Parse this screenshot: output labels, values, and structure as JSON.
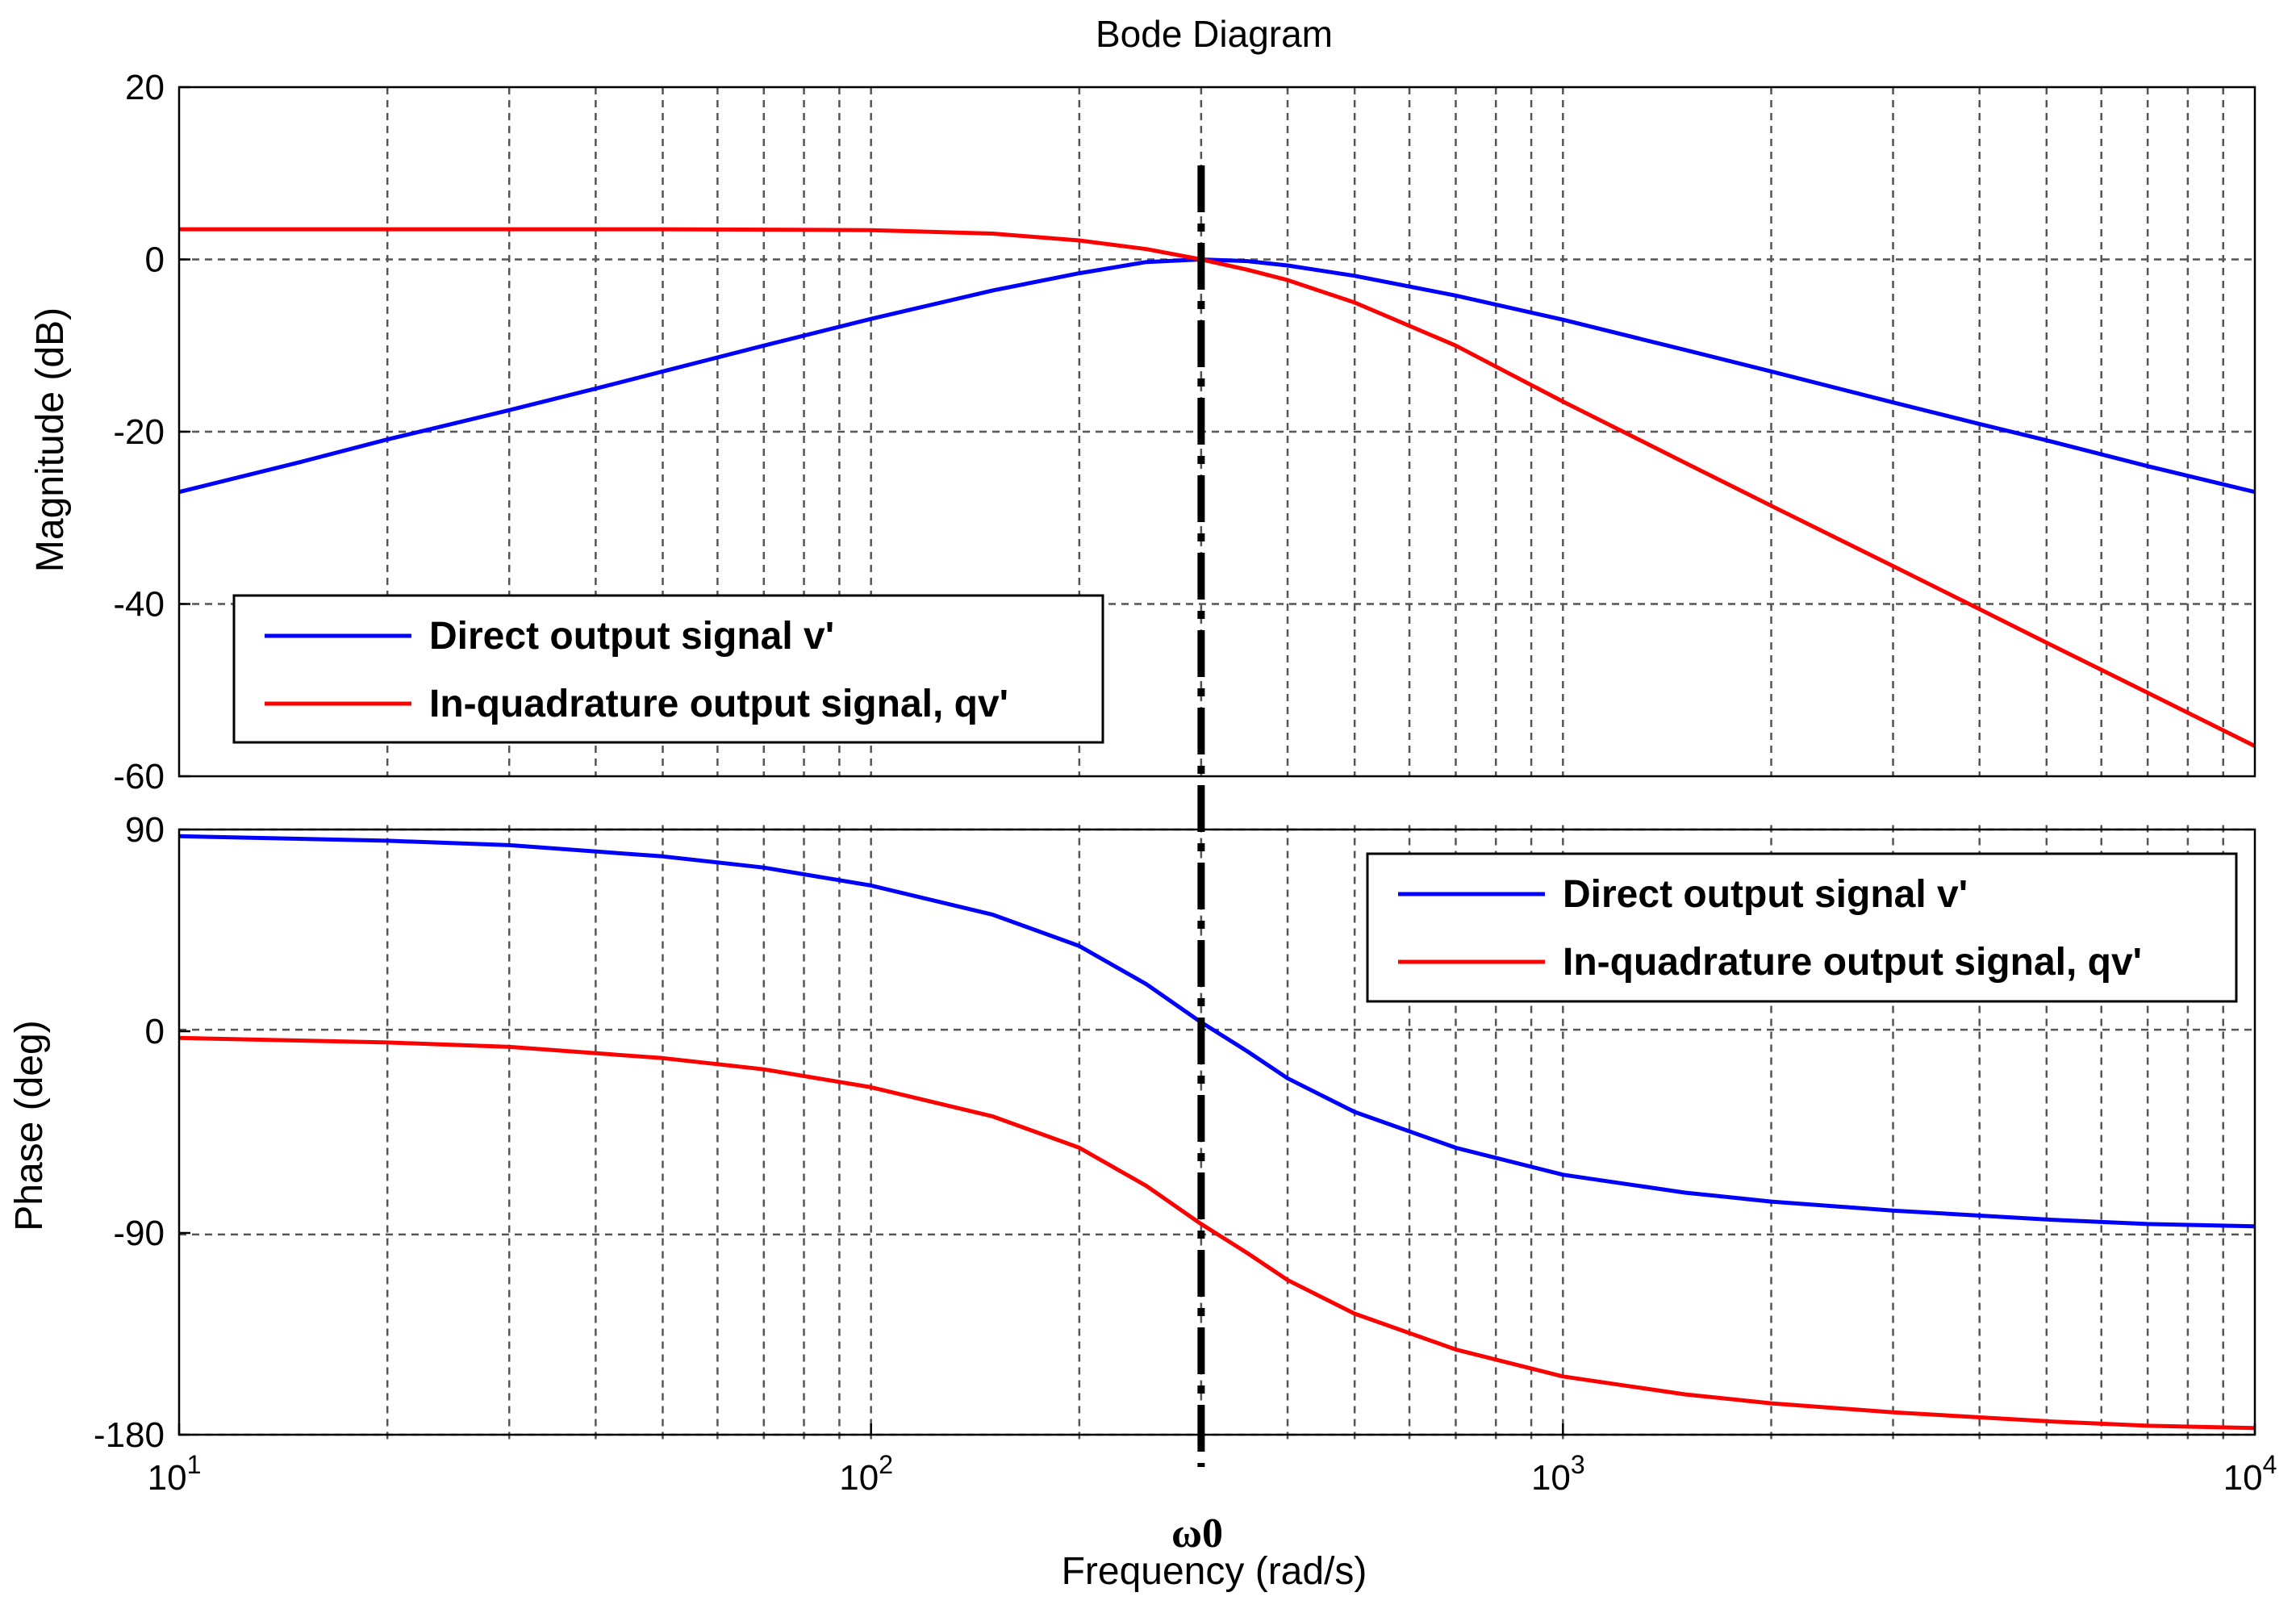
{
  "chart_data": [
    {
      "panel": "magnitude",
      "type": "line",
      "title": "Bode Diagram",
      "xlabel": "Frequency  (rad/s)",
      "ylabel": "Magnitude (dB)",
      "xscale": "log",
      "xlim": [
        10,
        10000
      ],
      "ylim": [
        -60,
        20
      ],
      "yticks": [
        -60,
        -40,
        -20,
        0,
        20
      ],
      "grid": true,
      "legend_position": "bottom-left",
      "series": [
        {
          "name": "Direct output signal v'",
          "color": "#0000ff",
          "x": [
            10,
            15,
            20,
            30,
            40,
            50,
            70,
            100,
            150,
            200,
            250,
            300,
            350,
            400,
            500,
            700,
            1000,
            1500,
            2000,
            3000,
            4000,
            5000,
            7000,
            10000
          ],
          "y": [
            -27,
            -23.5,
            -20.9,
            -17.5,
            -15,
            -13,
            -10,
            -6.9,
            -3.6,
            -1.6,
            -0.3,
            0,
            -0.2,
            -0.7,
            -1.9,
            -4.2,
            -7,
            -10.5,
            -13,
            -16.6,
            -19.1,
            -21,
            -24,
            -27
          ]
        },
        {
          "name": "In-quadrature output signal, qv'",
          "color": "#ff0000",
          "x": [
            10,
            30,
            50,
            100,
            150,
            200,
            250,
            300,
            350,
            400,
            500,
            700,
            1000,
            1500,
            2000,
            3000,
            4000,
            5000,
            7000,
            10000
          ],
          "y": [
            3.5,
            3.5,
            3.5,
            3.4,
            3,
            2.2,
            1.2,
            0,
            -1.2,
            -2.4,
            -5,
            -10,
            -16.5,
            -23.6,
            -28.6,
            -35.6,
            -40.6,
            -44.5,
            -50.3,
            -56.5
          ]
        }
      ]
    },
    {
      "panel": "phase",
      "type": "line",
      "xlabel": "Frequency  (rad/s)",
      "ylabel": "Phase (deg)",
      "xscale": "log",
      "xlim": [
        10,
        10000
      ],
      "xtick_labels": [
        "10^1",
        "10^2",
        "10^3",
        "10^4"
      ],
      "ylim": [
        -180,
        90
      ],
      "yticks": [
        -180,
        -90,
        0,
        90
      ],
      "grid": true,
      "legend_position": "top-right",
      "series": [
        {
          "name": "Direct output signal v'",
          "color": "#0000ff",
          "x": [
            10,
            20,
            30,
            50,
            70,
            100,
            150,
            200,
            250,
            300,
            350,
            400,
            500,
            700,
            1000,
            1500,
            2000,
            3000,
            5000,
            7000,
            10000
          ],
          "y": [
            87,
            85,
            83,
            78,
            73,
            65,
            52,
            38,
            21,
            4,
            -9,
            -21,
            -36,
            -52,
            -64,
            -72,
            -76,
            -80,
            -84,
            -86,
            -87
          ]
        },
        {
          "name": "In-quadrature output signal, qv'",
          "color": "#ff0000",
          "x": [
            10,
            20,
            30,
            50,
            70,
            100,
            150,
            200,
            250,
            300,
            350,
            400,
            500,
            700,
            1000,
            1500,
            2000,
            3000,
            5000,
            7000,
            10000
          ],
          "y": [
            -3,
            -5,
            -7,
            -12,
            -17,
            -25,
            -38,
            -52,
            -69,
            -86,
            -99,
            -111,
            -126,
            -142,
            -154,
            -162,
            -166,
            -170,
            -174,
            -176,
            -177
          ]
        }
      ]
    }
  ],
  "marker": {
    "label": "ω0",
    "x": 300
  }
}
